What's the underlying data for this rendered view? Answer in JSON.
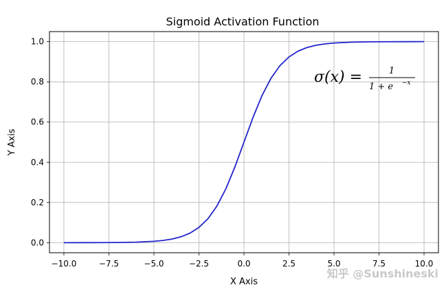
{
  "chart_data": {
    "type": "line",
    "title": "Sigmoid Activation Function",
    "xlabel": "X Axis",
    "ylabel": "Y Axis",
    "xlim": [
      -10.8,
      10.8
    ],
    "ylim": [
      -0.05,
      1.05
    ],
    "grid": true,
    "x_ticks": [
      -10.0,
      -7.5,
      -5.0,
      -2.5,
      0.0,
      2.5,
      5.0,
      7.5,
      10.0
    ],
    "x_tick_labels": [
      "−10.0",
      "−7.5",
      "−5.0",
      "−2.5",
      "0.0",
      "2.5",
      "5.0",
      "7.5",
      "10.0"
    ],
    "y_ticks": [
      0.0,
      0.2,
      0.4,
      0.6,
      0.8,
      1.0
    ],
    "y_tick_labels": [
      "0.0",
      "0.2",
      "0.4",
      "0.6",
      "0.8",
      "1.0"
    ],
    "series": [
      {
        "color": "#2222cc",
        "x": [
          -10,
          -9,
          -8,
          -7,
          -6,
          -5,
          -4.5,
          -4,
          -3.5,
          -3,
          -2.5,
          -2,
          -1.5,
          -1,
          -0.5,
          0,
          0.5,
          1,
          1.5,
          2,
          2.5,
          3,
          3.5,
          4,
          4.5,
          5,
          6,
          7,
          8,
          9,
          10
        ],
        "y": [
          5e-05,
          0.00012,
          0.00034,
          0.00091,
          0.00247,
          0.00669,
          0.01099,
          0.01799,
          0.02931,
          0.04743,
          0.07586,
          0.1192,
          0.18243,
          0.26894,
          0.37754,
          0.5,
          0.62246,
          0.73106,
          0.81757,
          0.8808,
          0.92414,
          0.95257,
          0.97069,
          0.98201,
          0.98901,
          0.99331,
          0.99753,
          0.99909,
          0.99966,
          0.99988,
          0.99995
        ]
      }
    ],
    "annotation": {
      "lhs": "σ(x) =",
      "numerator": "1",
      "denominator": "1 + e",
      "exponent": "−x"
    }
  },
  "watermark": "知乎 @Sunshineski"
}
